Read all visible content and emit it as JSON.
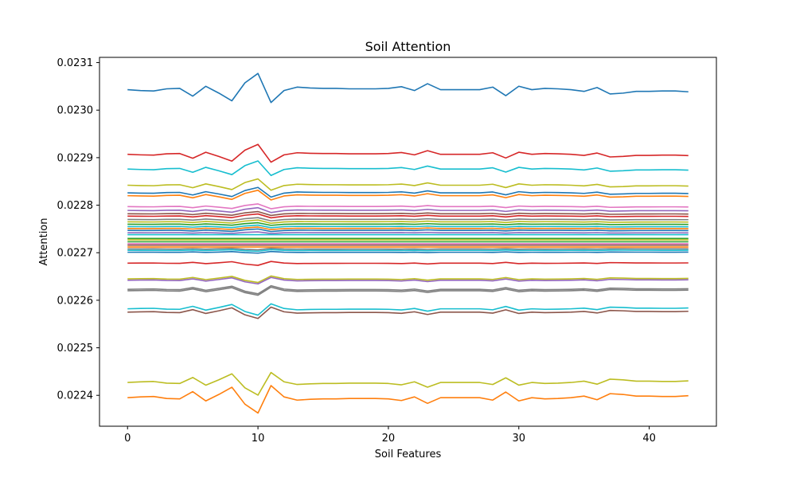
{
  "chart_data": {
    "type": "line",
    "title": "Soil Attention",
    "xlabel": "Soil Features",
    "ylabel": "Attention",
    "xlim": [
      -2.15,
      45.15
    ],
    "ylim": [
      0.022335,
      0.023111
    ],
    "x_ticks": [
      0,
      10,
      20,
      30,
      40
    ],
    "x_tick_labels": [
      "0",
      "10",
      "20",
      "30",
      "40"
    ],
    "y_ticks": [
      0.0224,
      0.0225,
      0.0226,
      0.0227,
      0.0228,
      0.0229,
      0.023,
      0.0231
    ],
    "y_tick_labels": [
      "0.0224",
      "0.0225",
      "0.0226",
      "0.0227",
      "0.0228",
      "0.0229",
      "0.0230",
      "0.0231"
    ],
    "grid": false,
    "x": [
      0,
      1,
      2,
      3,
      4,
      5,
      6,
      7,
      8,
      9,
      10,
      11,
      12,
      13,
      14,
      15,
      16,
      17,
      18,
      19,
      20,
      21,
      22,
      23,
      24,
      25,
      26,
      27,
      28,
      29,
      30,
      31,
      32,
      33,
      34,
      35,
      36,
      37,
      38,
      39,
      40,
      41,
      42,
      43
    ],
    "base_pattern": [
      0,
      0.2,
      0.3,
      -0.2,
      -0.3,
      1.5,
      -0.8,
      0.8,
      2.6,
      -1.6,
      -3.8,
      3.0,
      0.2,
      -0.6,
      -0.4,
      -0.3,
      -0.3,
      -0.2,
      -0.2,
      -0.2,
      -0.3,
      -0.7,
      0.2,
      -1.4,
      0,
      0,
      0,
      0,
      -0.6,
      1.4,
      -0.8,
      0,
      -0.3,
      -0.2,
      0,
      0.4,
      -0.5,
      1.0,
      0.8,
      0.4,
      0.4,
      0.3,
      0.3,
      0.5
    ],
    "series": [
      {
        "base": 0.023043,
        "amp": -9e-06,
        "color": "#1f77b4"
      },
      {
        "base": 0.022907,
        "amp": -5.5e-06,
        "color": "#d62728"
      },
      {
        "base": 0.022876,
        "amp": -4.5e-06,
        "color": "#17becf"
      },
      {
        "base": 0.022842,
        "amp": -3.5e-06,
        "color": "#bcbd22"
      },
      {
        "base": 0.022826,
        "amp": -3e-06,
        "color": "#1f77b4"
      },
      {
        "base": 0.02282,
        "amp": -3e-06,
        "color": "#ff7f0e"
      },
      {
        "base": 0.022797,
        "amp": -1.5e-06,
        "color": "#e377c2"
      },
      {
        "base": 0.022789,
        "amp": -1.5e-06,
        "color": "#9467bd"
      },
      {
        "base": 0.022782,
        "amp": -1.2e-06,
        "color": "#8c564b"
      },
      {
        "base": 0.022777,
        "amp": -1.2e-06,
        "color": "#d62728"
      },
      {
        "base": 0.02277,
        "amp": -1e-06,
        "color": "#7f7f7f"
      },
      {
        "base": 0.022765,
        "amp": -1e-06,
        "color": "#bcbd22"
      },
      {
        "base": 0.02276,
        "amp": -8e-07,
        "color": "#2ca02c"
      },
      {
        "base": 0.022755,
        "amp": -8e-07,
        "color": "#17becf"
      },
      {
        "base": 0.022751,
        "amp": -8e-07,
        "color": "#ff7f0e"
      },
      {
        "base": 0.022747,
        "amp": -8e-07,
        "color": "#1f77b4"
      },
      {
        "base": 0.022742,
        "amp": -5e-07,
        "color": "#9467bd"
      },
      {
        "base": 0.022738,
        "amp": 0,
        "color": "#17becf"
      },
      {
        "base": 0.02273,
        "amp": 0,
        "color": "#2ca02c"
      },
      {
        "base": 0.022727,
        "amp": 0,
        "color": "#bcbd22"
      },
      {
        "base": 0.022723,
        "amp": 0,
        "color": "#2ca02c"
      },
      {
        "base": 0.022719,
        "amp": 0,
        "color": "#e377c2"
      },
      {
        "base": 0.022716,
        "amp": 0,
        "color": "#8c564b"
      },
      {
        "base": 0.022712,
        "amp": 0,
        "color": "#ff7f0e"
      },
      {
        "base": 0.022708,
        "amp": 5e-07,
        "color": "#7f7f7f"
      },
      {
        "base": 0.022705,
        "amp": 5e-07,
        "color": "#17becf"
      },
      {
        "base": 0.022701,
        "amp": 5e-07,
        "color": "#1f77b4"
      },
      {
        "base": 0.022678,
        "amp": 1.2e-06,
        "color": "#d62728"
      },
      {
        "base": 0.022645,
        "amp": 2e-06,
        "color": "#bcbd22"
      },
      {
        "base": 0.022642,
        "amp": 2e-06,
        "color": "#9467bd"
      },
      {
        "base": 0.022623,
        "amp": 2.5e-06,
        "color": "#7f7f7f"
      },
      {
        "base": 0.02262,
        "amp": 2.5e-06,
        "color": "#7f7f7f"
      },
      {
        "base": 0.022582,
        "amp": 3.5e-06,
        "color": "#17becf"
      },
      {
        "base": 0.022575,
        "amp": 3.5e-06,
        "color": "#8c564b"
      },
      {
        "base": 0.022427,
        "amp": 7e-06,
        "color": "#bcbd22"
      },
      {
        "base": 0.022395,
        "amp": 8.5e-06,
        "color": "#ff7f0e"
      }
    ]
  }
}
